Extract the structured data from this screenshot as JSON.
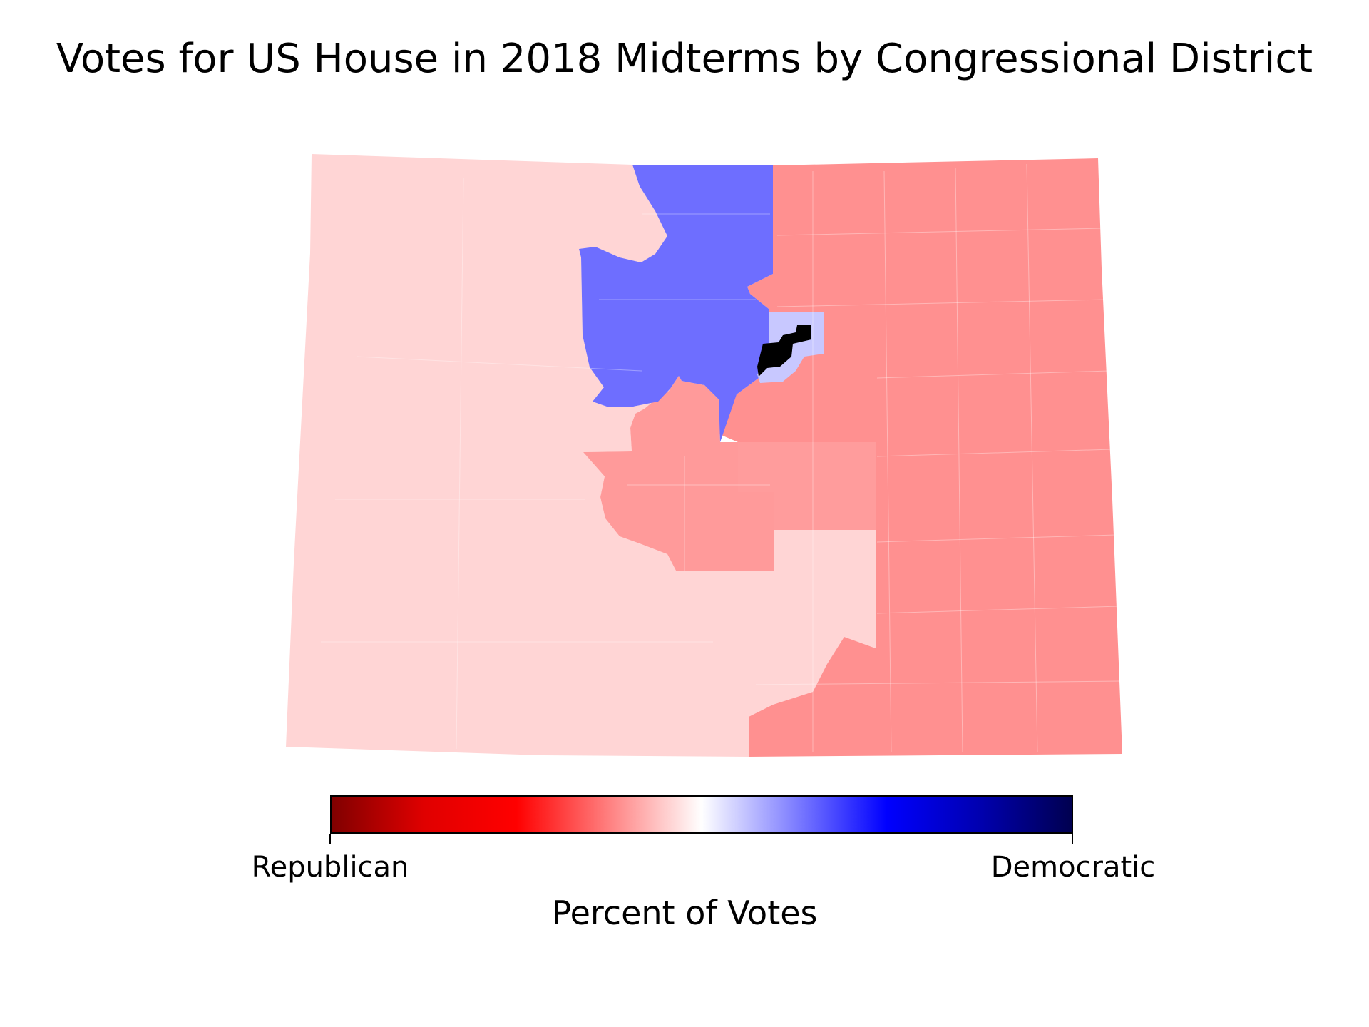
{
  "title": "Votes for US House in 2018 Midterms by Congressional District",
  "colorbar": {
    "label": "Percent of Votes",
    "left_label": "Republican",
    "right_label": "Democratic",
    "gradient": [
      "#800000",
      "#e00000",
      "#ff0000",
      "#ff8080",
      "#ffffff",
      "#8080ff",
      "#0000ff",
      "#0000b0",
      "#000050"
    ]
  },
  "map": {
    "state": "Colorado",
    "districts": [
      {
        "id": "west",
        "color": "#ffd5d5"
      },
      {
        "id": "east",
        "color": "#ff9090"
      },
      {
        "id": "south-central",
        "color": "#ff9a9a"
      },
      {
        "id": "southeast-lobe",
        "color": "#ffd5d5"
      },
      {
        "id": "north-central",
        "color": "#6e6eff"
      },
      {
        "id": "denver-core",
        "color": "#0000d8"
      },
      {
        "id": "aurora",
        "color": "#c8c8ff"
      }
    ]
  }
}
